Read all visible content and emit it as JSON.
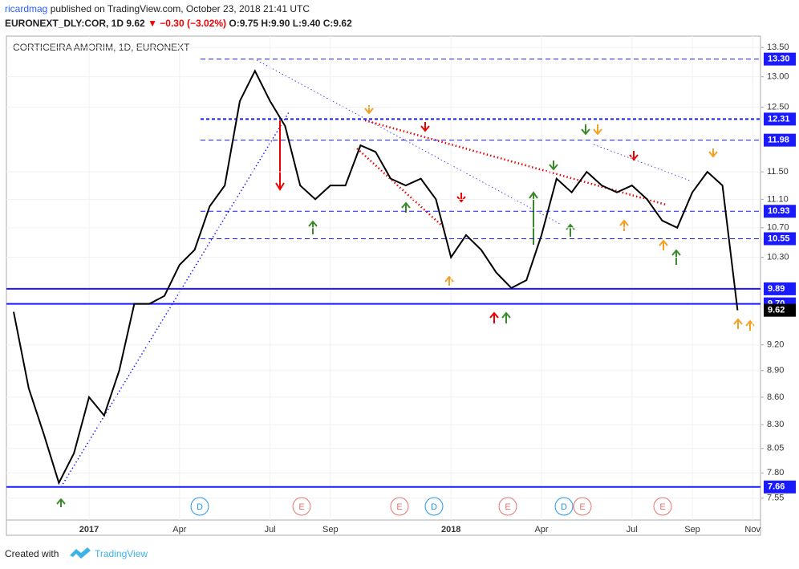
{
  "header": {
    "author": "ricardmag",
    "published": "published on TradingView.com, October 23, 2018 21:41 UTC",
    "symbol": "EURONEXT_DLY:COR, 1D",
    "price": "9.62",
    "change": "▼ −0.30 (−3.02%)",
    "ohlc": "O:9.75 H:9.90 L:9.40 C:9.62"
  },
  "footer": {
    "created": "Created with",
    "brand": "TradingView"
  },
  "chart_data": {
    "type": "line",
    "title": "CORTICEIRA AMORIM, 1D, EURONEXT",
    "color": "#000000",
    "log_scale": true,
    "grid": true,
    "categories": [
      null,
      null,
      null,
      null,
      null,
      "2017",
      null,
      null,
      null,
      null,
      null,
      "Apr",
      null,
      null,
      null,
      null,
      null,
      "Jul",
      null,
      null,
      null,
      "Sep",
      null,
      null,
      null,
      null,
      null,
      null,
      null,
      "2018",
      null,
      null,
      null,
      null,
      null,
      "Apr",
      null,
      null,
      null,
      null,
      null,
      "Jul",
      null,
      null,
      null,
      "Sep",
      null,
      null,
      null,
      "Nov"
    ],
    "values": [
      9.6,
      8.7,
      8.2,
      7.7,
      8.0,
      8.6,
      8.4,
      8.9,
      9.7,
      9.7,
      9.8,
      10.2,
      10.4,
      11.0,
      11.3,
      12.6,
      13.1,
      12.6,
      12.2,
      11.3,
      11.1,
      11.3,
      11.3,
      11.9,
      11.8,
      11.4,
      11.3,
      11.4,
      11.1,
      10.3,
      10.6,
      10.4,
      10.1,
      9.9,
      10.0,
      10.6,
      11.4,
      11.2,
      11.5,
      11.3,
      11.2,
      11.3,
      11.1,
      10.8,
      10.7,
      11.2,
      11.5,
      11.3,
      9.62,
      null
    ],
    "ylim": [
      7.34,
      13.7
    ],
    "yticks": [
      {
        "value": 13.5,
        "label": "13.50"
      },
      {
        "value": 13,
        "label": "13.00"
      },
      {
        "value": 12.5,
        "label": "12.50"
      },
      {
        "value": 11.5,
        "label": "11.50"
      },
      {
        "value": 11.1,
        "label": "11.10"
      },
      {
        "value": 10.7,
        "label": "10.70"
      },
      {
        "value": 10.3,
        "label": "10.30"
      },
      {
        "value": 9.2,
        "label": "9.20"
      },
      {
        "value": 8.9,
        "label": "8.90"
      },
      {
        "value": 8.6,
        "label": "8.60"
      },
      {
        "value": 8.3,
        "label": "8.30"
      },
      8.05,
      {
        "value": 7.8,
        "label": "7.80"
      },
      7.55
    ],
    "levels": [
      {
        "value": 13.3,
        "label": "13.30",
        "style": "dashed"
      },
      {
        "value": 12.31,
        "label": "12.31",
        "style": "dashed-bold"
      },
      {
        "value": 11.98,
        "label": "11.98",
        "style": "dashed"
      },
      {
        "value": 10.93,
        "label": "10.93",
        "style": "dashed"
      },
      {
        "value": 10.55,
        "label": "10.55",
        "style": "dashed"
      },
      {
        "value": 9.89,
        "label": "9.89",
        "style": "solid"
      },
      {
        "value": 9.7,
        "label": "9.70",
        "style": "solid"
      },
      {
        "value": 7.66,
        "label": "7.66",
        "style": "solid"
      }
    ],
    "level_color": "#1a1aff",
    "events": [
      "D",
      "E",
      "E",
      "D",
      "E",
      "D",
      "E",
      "E"
    ]
  }
}
